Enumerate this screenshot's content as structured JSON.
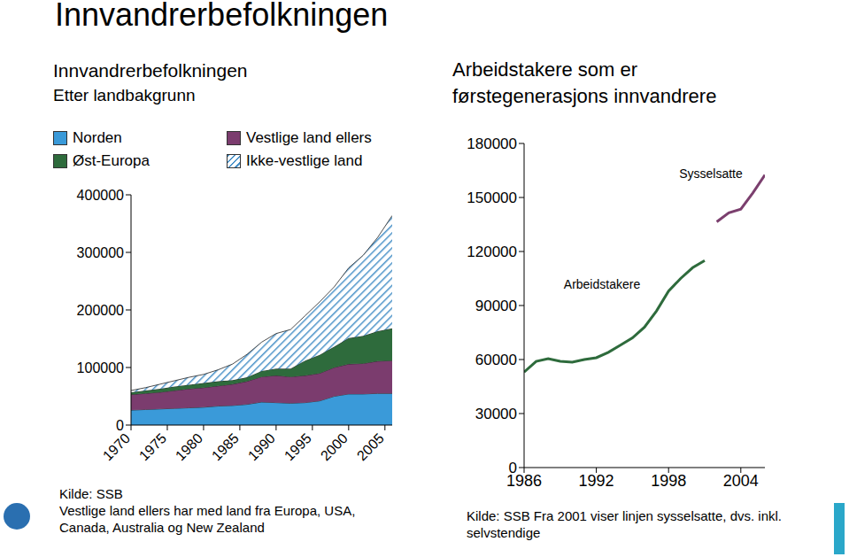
{
  "title": "Innvandrerbefolkningen",
  "chart_data": [
    {
      "type": "area",
      "stacked": true,
      "title": "Innvandrerbefolkningen",
      "subtitle": "Etter landbakgrunn",
      "x": [
        1970,
        1972,
        1974,
        1976,
        1978,
        1980,
        1982,
        1984,
        1986,
        1988,
        1990,
        1992,
        1994,
        1996,
        1998,
        2000,
        2002,
        2004,
        2006
      ],
      "xlim": [
        1970,
        2006
      ],
      "xticks": [
        1970,
        1975,
        1980,
        1985,
        1990,
        1995,
        2000,
        2005
      ],
      "ylim": [
        0,
        400000
      ],
      "yticks": [
        0,
        100000,
        200000,
        300000,
        400000
      ],
      "grid": false,
      "legend": "top-left",
      "series": [
        {
          "name": "Norden",
          "color": "#3a9ad9",
          "values": [
            26000,
            27000,
            28000,
            29000,
            30000,
            31000,
            33000,
            34000,
            36000,
            40000,
            39000,
            38000,
            39000,
            42000,
            50000,
            54000,
            54000,
            55000,
            55000
          ]
        },
        {
          "name": "Vestlige land ellers",
          "color": "#7b3c6e",
          "values": [
            27000,
            28000,
            29000,
            31000,
            33000,
            34000,
            35000,
            37000,
            40000,
            44000,
            47000,
            46000,
            47000,
            48000,
            50000,
            52000,
            53000,
            56000,
            57000
          ]
        },
        {
          "name": "Øst-Europa",
          "color": "#2e6b3c",
          "values": [
            4000,
            5000,
            6000,
            7000,
            7000,
            8000,
            8000,
            7000,
            7000,
            10000,
            12000,
            14000,
            26000,
            32000,
            36000,
            45000,
            48000,
            52000,
            56000
          ]
        },
        {
          "name": "Ikke-vestlige land",
          "color": "#4a92c8",
          "values": [
            3000,
            5000,
            8000,
            10000,
            13000,
            15000,
            20000,
            28000,
            40000,
            50000,
            61000,
            68000,
            78000,
            92000,
            104000,
            122000,
            140000,
            163000,
            196000
          ]
        }
      ],
      "annotations": [
        "Kilde: SSB",
        "Vestlige land ellers har med land fra Europa, USA, Canada, Australia og New Zealand"
      ]
    },
    {
      "type": "line",
      "title": "Arbeidstakere som er førstegenerasjons innvandrere",
      "x": [
        1986,
        1987,
        1988,
        1989,
        1990,
        1991,
        1992,
        1993,
        1994,
        1995,
        1996,
        1997,
        1998,
        1999,
        2000,
        2001,
        2002,
        2003,
        2004,
        2005,
        2006
      ],
      "xlim": [
        1986,
        2006
      ],
      "xticks": [
        1986,
        1992,
        1998,
        2004
      ],
      "ylim": [
        0,
        180000
      ],
      "yticks": [
        0,
        30000,
        60000,
        90000,
        120000,
        150000,
        180000
      ],
      "grid": false,
      "series": [
        {
          "name": "Arbeidstakere",
          "color": "#2e6b3c",
          "values": [
            53000,
            59000,
            60500,
            59000,
            58500,
            60000,
            61000,
            64000,
            68000,
            72000,
            78000,
            87000,
            98000,
            105000,
            111000,
            115000,
            null,
            null,
            null,
            null,
            null
          ]
        },
        {
          "name": "Sysselsatte",
          "color": "#7b3f6e",
          "values": [
            null,
            null,
            null,
            null,
            null,
            null,
            null,
            null,
            null,
            null,
            null,
            null,
            null,
            null,
            null,
            null,
            136500,
            141500,
            143500,
            152500,
            162500
          ]
        }
      ],
      "annotations": [
        "Kilde: SSB Fra 2001 viser linjen sysselsatte, dvs. inkl. selvstendige"
      ]
    }
  ]
}
